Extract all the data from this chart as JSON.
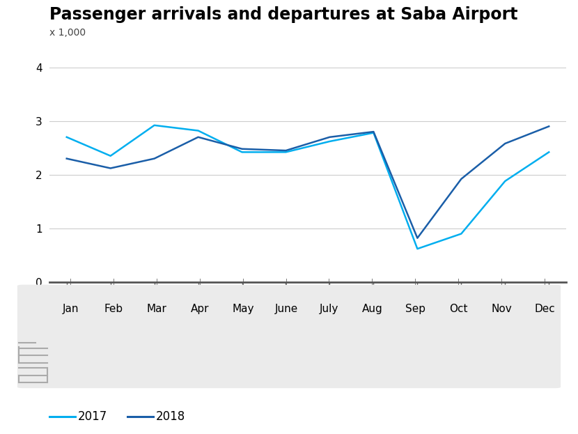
{
  "title": "Passenger arrivals and departures at Saba Airport",
  "ylabel_unit": "x 1,000",
  "months": [
    "Jan",
    "Feb",
    "Mar",
    "Apr",
    "May",
    "June",
    "July",
    "Aug",
    "Sep",
    "Oct",
    "Nov",
    "Dec"
  ],
  "series_2017": [
    2.7,
    2.35,
    2.92,
    2.82,
    2.42,
    2.42,
    2.62,
    2.78,
    0.62,
    0.9,
    1.88,
    2.42
  ],
  "series_2018": [
    2.3,
    2.12,
    2.3,
    2.7,
    2.48,
    2.45,
    2.7,
    2.8,
    0.82,
    1.92,
    2.58,
    2.9
  ],
  "color_2017": "#00AEEF",
  "color_2018": "#1A5EA8",
  "ylim": [
    0,
    4.0
  ],
  "yticks": [
    0,
    1,
    2,
    3,
    4
  ],
  "line_width": 1.8,
  "title_fontsize": 17,
  "unit_fontsize": 10,
  "tick_fontsize": 11,
  "legend_fontsize": 12,
  "bg_white": "#FFFFFF",
  "bg_gray": "#EBEBEB",
  "spine_color": "#555555",
  "grid_color": "#CCCCCC",
  "text_color": "#000000",
  "legend_label_2017": "2017",
  "legend_label_2018": "2018"
}
